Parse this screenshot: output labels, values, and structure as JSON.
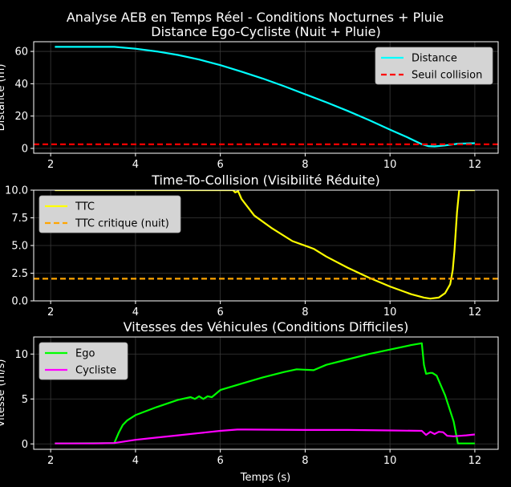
{
  "figure": {
    "suptitle": "Analyse AEB en Temps Réel - Conditions Nocturnes + Pluie",
    "xlabel": "Temps (s)",
    "colors": {
      "background": "#000000",
      "foreground": "#ffffff",
      "grid": "#3a3a3a",
      "legend_bg": "#d4d4d4"
    }
  },
  "chart_data": [
    {
      "type": "line",
      "title": "Distance Ego-Cycliste (Nuit + Pluie)",
      "ylabel": "Distance (m)",
      "xlim": [
        1.6,
        12.55
      ],
      "ylim": [
        -3,
        66
      ],
      "xticks": [
        2,
        4,
        6,
        8,
        10,
        12
      ],
      "xtick_labels": [
        "2",
        "4",
        "6",
        "8",
        "10",
        "12"
      ],
      "yticks": [
        0,
        20,
        40,
        60
      ],
      "ytick_labels": [
        "0",
        "20",
        "40",
        "60"
      ],
      "grid": true,
      "legend_position": "top-right",
      "series": [
        {
          "name": "Distance",
          "color": "#00ffff",
          "style": "solid",
          "x": [
            2.1,
            3,
            3.5,
            4,
            4.5,
            5,
            5.5,
            6,
            6.5,
            7,
            7.5,
            8,
            8.5,
            9,
            9.5,
            10,
            10.4,
            10.75,
            10.9,
            11.05,
            11.3,
            11.6,
            12
          ],
          "y": [
            62.8,
            62.8,
            62.8,
            61.7,
            60,
            57.8,
            55,
            51.5,
            47.5,
            43.2,
            38.5,
            33.5,
            28.5,
            23.2,
            17.6,
            11.6,
            7,
            2.6,
            1.4,
            1.2,
            1.8,
            2.9,
            3.2
          ]
        },
        {
          "name": "Seuil collision",
          "color": "#ff0000",
          "style": "dashed",
          "x": [
            1.6,
            12.55
          ],
          "y": [
            2.5,
            2.5
          ]
        }
      ]
    },
    {
      "type": "line",
      "title": "Time-To-Collision (Visibilité Réduite)",
      "ylabel": "",
      "xlim": [
        1.6,
        12.55
      ],
      "ylim": [
        0,
        10
      ],
      "xticks": [
        2,
        4,
        6,
        8,
        10,
        12
      ],
      "xtick_labels": [
        "2",
        "4",
        "6",
        "8",
        "10",
        "12"
      ],
      "yticks": [
        0,
        2.5,
        5,
        7.5,
        10
      ],
      "ytick_labels": [
        "0.0",
        "2.5",
        "5.0",
        "7.5",
        "10.0"
      ],
      "grid": true,
      "legend_position": "top-left",
      "series": [
        {
          "name": "TTC",
          "color": "#ffff00",
          "style": "solid",
          "x": [
            2.1,
            4,
            6.3,
            6.35,
            6.42,
            6.5,
            6.8,
            7.2,
            7.7,
            8.2,
            8.5,
            9,
            9.5,
            10,
            10.5,
            10.8,
            10.95,
            11.15,
            11.3,
            11.42,
            11.48,
            11.52,
            11.58,
            11.63,
            12
          ],
          "y": [
            10,
            10,
            10,
            9.8,
            9.9,
            9.2,
            7.7,
            6.6,
            5.4,
            4.7,
            4,
            3,
            2.1,
            1.3,
            0.6,
            0.3,
            0.2,
            0.3,
            0.7,
            1.5,
            2.8,
            4.5,
            8,
            10,
            10
          ]
        },
        {
          "name": "TTC critique (nuit)",
          "color": "#ffa500",
          "style": "dashed",
          "x": [
            1.6,
            12.55
          ],
          "y": [
            2,
            2
          ]
        }
      ]
    },
    {
      "type": "line",
      "title": "Vitesses des Véhicules (Conditions Difficiles)",
      "ylabel": "Vitesse (m/s)",
      "xlim": [
        1.6,
        12.55
      ],
      "ylim": [
        -0.6,
        11.9
      ],
      "xticks": [
        2,
        4,
        6,
        8,
        10,
        12
      ],
      "xtick_labels": [
        "2",
        "4",
        "6",
        "8",
        "10",
        "12"
      ],
      "yticks": [
        0,
        5,
        10
      ],
      "ytick_labels": [
        "0",
        "5",
        "10"
      ],
      "grid": true,
      "legend_position": "top-left",
      "series": [
        {
          "name": "Ego",
          "color": "#00ff00",
          "style": "solid",
          "x": [
            2.1,
            3.5,
            3.6,
            3.7,
            3.8,
            4,
            4.5,
            5,
            5.3,
            5.4,
            5.5,
            5.6,
            5.7,
            5.8,
            6,
            6.5,
            7,
            7.5,
            7.8,
            8.2,
            8.5,
            9,
            9.5,
            10,
            10.5,
            10.75,
            10.8,
            10.85,
            10.95,
            11.0,
            11.1,
            11.3,
            11.5,
            11.6,
            12
          ],
          "y": [
            0.05,
            0.1,
            1.2,
            2.1,
            2.6,
            3.2,
            4.1,
            4.9,
            5.2,
            5.0,
            5.3,
            5.0,
            5.3,
            5.2,
            6.0,
            6.7,
            7.4,
            8,
            8.3,
            8.2,
            8.8,
            9.4,
            10,
            10.5,
            11,
            11.2,
            8.8,
            7.8,
            7.9,
            7.9,
            7.6,
            5.4,
            2.5,
            0.05,
            0.05
          ]
        },
        {
          "name": "Cycliste",
          "color": "#ff00ff",
          "style": "solid",
          "x": [
            2.1,
            3,
            3.5,
            4,
            4.5,
            5,
            5.5,
            6,
            6.4,
            6.6,
            8,
            9,
            10,
            10.75,
            10.85,
            10.95,
            11.05,
            11.15,
            11.25,
            11.35,
            11.5,
            11.8,
            12
          ],
          "y": [
            0.05,
            0.05,
            0.1,
            0.45,
            0.7,
            0.95,
            1.2,
            1.45,
            1.6,
            1.6,
            1.55,
            1.55,
            1.5,
            1.45,
            1.0,
            1.35,
            1.1,
            1.35,
            1.3,
            0.9,
            0.85,
            0.95,
            1.05
          ]
        }
      ]
    }
  ]
}
